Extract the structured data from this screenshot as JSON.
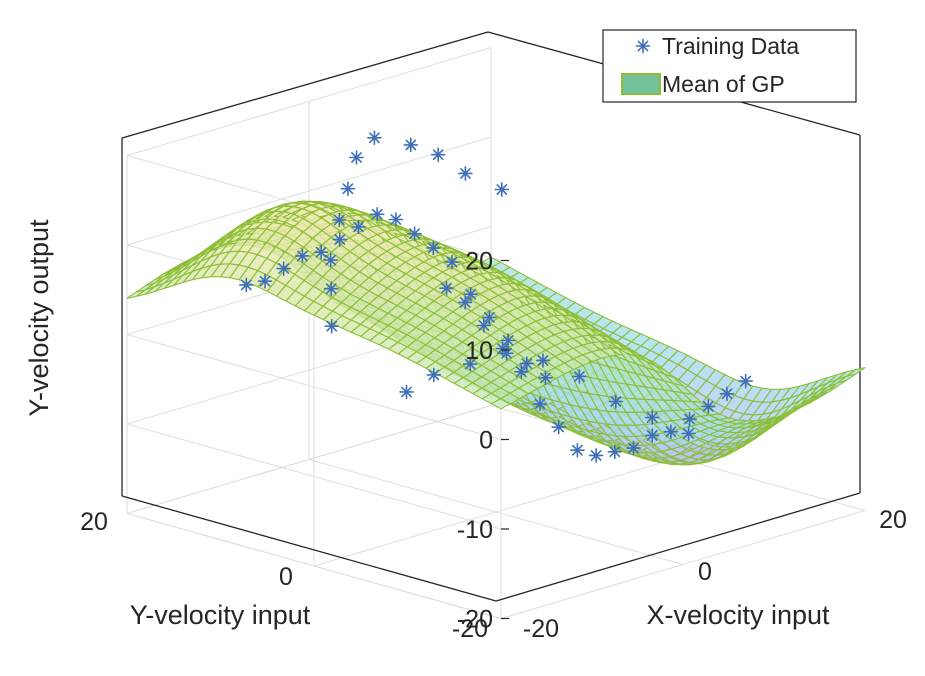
{
  "chart_data": {
    "type": "surface3d",
    "title": "",
    "xlabel": "X-velocity input",
    "ylabel": "Y-velocity input",
    "zlabel": "Y-velocity output",
    "xlim": [
      -20,
      20
    ],
    "ylim": [
      -20,
      20
    ],
    "zlim": [
      -20,
      20
    ],
    "x_tick_labels": [
      "-20",
      "0",
      "20"
    ],
    "y_tick_labels": [
      "-20",
      "0",
      "20"
    ],
    "z_tick_labels": [
      "-20",
      "-10",
      "0",
      "10",
      "20"
    ],
    "grid": true,
    "legend": {
      "location": "top-right",
      "entries": [
        "Training Data",
        "Mean of GP"
      ]
    },
    "colors": {
      "mesh_edge": "#8DBE38",
      "marker": "#3F6FB8",
      "legend_patch": "#74C29C",
      "axis": "#262626",
      "grid": "#dedede"
    },
    "series": [
      {
        "name": "Training Data",
        "kind": "scatter3d",
        "marker": "asterisk",
        "points": [
          [
            -11,
            -16,
            3
          ],
          [
            -11,
            -14,
            4
          ],
          [
            -11,
            -12,
            6
          ],
          [
            -11,
            -10,
            8
          ],
          [
            -11,
            -8,
            10
          ],
          [
            -11,
            -6,
            13
          ],
          [
            -11,
            -4,
            14
          ],
          [
            -11,
            -2,
            15
          ],
          [
            -11,
            0,
            16
          ],
          [
            -11,
            2,
            16
          ],
          [
            -11,
            4,
            14
          ],
          [
            -11,
            6,
            12
          ],
          [
            -11,
            8,
            10
          ],
          [
            -11,
            10,
            9
          ],
          [
            -11,
            12,
            7
          ],
          [
            -11,
            14,
            5
          ],
          [
            -11,
            16,
            4
          ],
          [
            11,
            -16,
            -4
          ],
          [
            11,
            -14,
            -6
          ],
          [
            11,
            -12,
            -8
          ],
          [
            11,
            -10,
            -10
          ],
          [
            11,
            -8,
            -12
          ],
          [
            11,
            -6,
            -13
          ],
          [
            11,
            -4,
            -15
          ],
          [
            11,
            -2,
            -16
          ],
          [
            11,
            0,
            -17
          ],
          [
            11,
            2,
            -17
          ],
          [
            11,
            4,
            -15
          ],
          [
            11,
            6,
            -13
          ],
          [
            11,
            8,
            -10
          ],
          [
            11,
            10,
            -8
          ],
          [
            11,
            12,
            -6
          ],
          [
            11,
            14,
            -4
          ],
          [
            11,
            16,
            -3
          ],
          [
            -16,
            2,
            5
          ],
          [
            -14,
            4,
            8
          ],
          [
            -12,
            6,
            10
          ],
          [
            -9,
            8,
            13
          ],
          [
            -6,
            10,
            15
          ],
          [
            -3,
            12,
            17
          ],
          [
            0,
            13,
            18
          ],
          [
            4,
            13,
            16
          ],
          [
            7,
            13,
            14
          ],
          [
            10,
            13,
            11
          ],
          [
            14,
            13,
            8
          ],
          [
            -16,
            -6,
            0
          ],
          [
            -13,
            -6,
            1
          ],
          [
            -9,
            -6,
            1
          ],
          [
            -5,
            -6,
            1
          ],
          [
            -1,
            -6,
            -1
          ],
          [
            3,
            -6,
            -4
          ],
          [
            7,
            -6,
            -8
          ],
          [
            11,
            -6,
            -11
          ],
          [
            15,
            -6,
            -14
          ]
        ]
      },
      {
        "name": "Mean of GP",
        "kind": "surface",
        "function": "z = 16*tanh(-x/6)*exp(-(x^2+y^2)/520) + 6*exp(-((x+14)^2+(y-10)^2)/60) - 6*exp(-((x-14)^2+(y+10)^2)/60)",
        "grid_points_per_axis": 41
      }
    ]
  }
}
